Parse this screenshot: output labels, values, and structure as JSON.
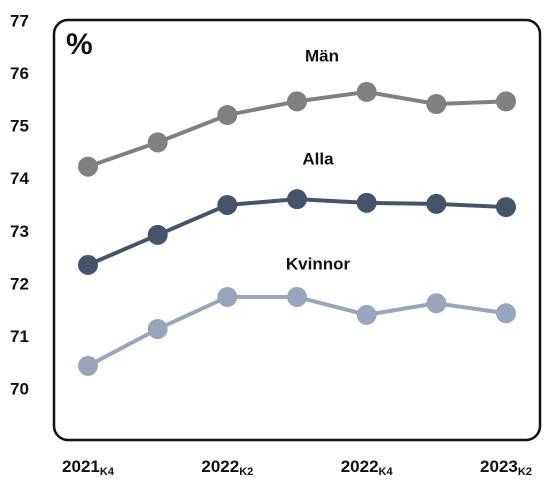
{
  "chart_data": {
    "type": "line",
    "unit_label": "%",
    "categories": [
      "2021K4",
      null,
      "2022K2",
      null,
      "2022K4",
      null,
      "2023K2"
    ],
    "series": [
      {
        "name": "Män",
        "color": "#808080",
        "values": [
          74.25,
          74.71,
          75.23,
          75.49,
          75.67,
          75.44,
          75.49
        ]
      },
      {
        "name": "Alla",
        "color": "#44546a",
        "values": [
          72.38,
          72.95,
          73.52,
          73.63,
          73.56,
          73.54,
          73.48
        ]
      },
      {
        "name": "Kvinnor",
        "color": "#97a6bd",
        "values": [
          70.46,
          71.16,
          71.77,
          71.77,
          71.43,
          71.65,
          71.46
        ]
      }
    ],
    "ylim": [
      69,
      77
    ],
    "yticks": [
      70,
      71,
      72,
      73,
      74,
      75,
      76,
      77
    ],
    "grid": false
  }
}
